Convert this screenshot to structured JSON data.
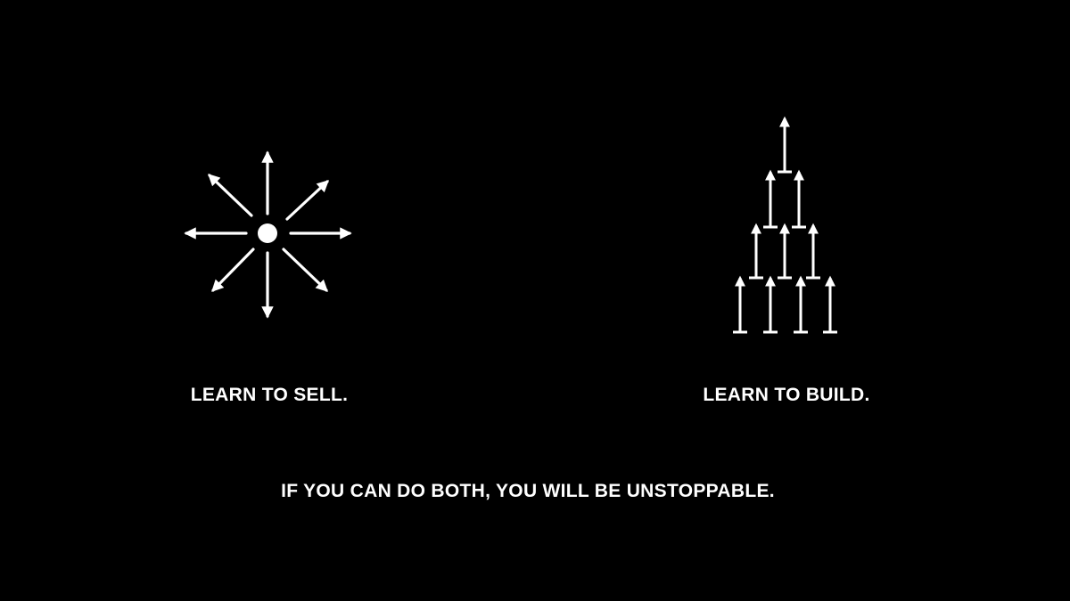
{
  "sell": {
    "icon": "burst-arrows-icon",
    "label": "LEARN TO SELL."
  },
  "build": {
    "icon": "stacked-arrows-pyramid-icon",
    "label": "LEARN TO BUILD."
  },
  "tagline": "IF YOU CAN DO BOTH, YOU WILL BE UNSTOPPABLE.",
  "colors": {
    "background": "#000000",
    "foreground": "#ffffff"
  }
}
